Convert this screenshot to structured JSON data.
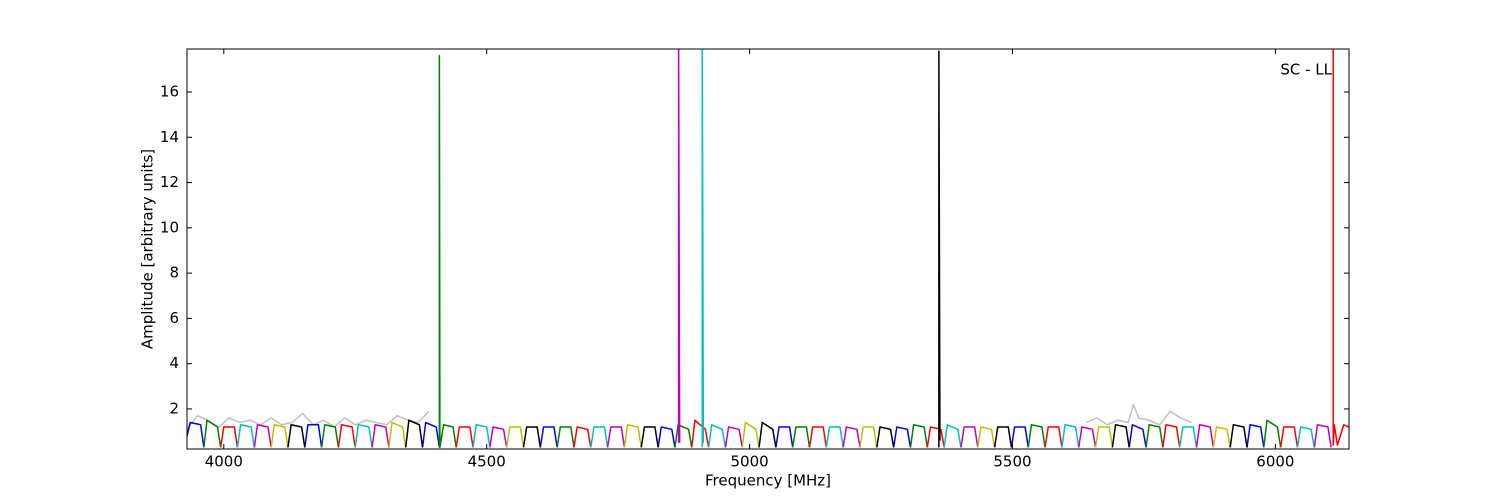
{
  "chart_data": {
    "type": "line",
    "annotation": "SC - LL",
    "xlabel": "Frequency [MHz]",
    "ylabel": "Amplitude [arbitrary units]",
    "xlim": [
      3930,
      6140
    ],
    "ylim": [
      0.23,
      17.9
    ],
    "xticks": [
      4000,
      4500,
      5000,
      5500,
      6000
    ],
    "yticks": [
      2,
      4,
      6,
      8,
      10,
      12,
      14,
      16
    ],
    "grid": false,
    "series": [
      {
        "color": "#c0c0c0",
        "x": [
          3930,
          3950,
          3970,
          3990,
          4010,
          4030,
          4050,
          4070,
          4090,
          4110,
          4130,
          4150,
          4170,
          4190,
          4210,
          4230,
          4250,
          4270,
          4290,
          4310,
          4330,
          4350,
          4370,
          4390,
          null,
          5640,
          5660,
          5680,
          5700,
          5720,
          5730,
          5740,
          5760,
          5780,
          5800,
          5820,
          5840
        ],
        "values": [
          1.1,
          1.7,
          1.5,
          1.2,
          1.6,
          1.4,
          1.5,
          1.3,
          1.6,
          1.3,
          1.4,
          1.8,
          1.3,
          1.5,
          1.2,
          1.6,
          1.3,
          1.5,
          1.4,
          1.3,
          1.7,
          1.5,
          1.4,
          1.9,
          null,
          1.4,
          1.6,
          1.3,
          1.5,
          1.4,
          2.2,
          1.6,
          1.5,
          1.3,
          1.9,
          1.6,
          1.4
        ]
      },
      {
        "color": "#0000ff",
        "x": [
          3930,
          3936,
          3956,
          3962,
          null,
          4154,
          4160,
          4180,
          4186,
          null,
          4378,
          4384,
          4404,
          4410,
          null,
          4602,
          4608,
          4628,
          4634,
          null,
          4826,
          4832,
          4852,
          4858,
          null,
          5050,
          5056,
          5076,
          5082,
          null,
          5274,
          5280,
          5300,
          5306,
          null,
          5498,
          5504,
          5524,
          5530,
          null,
          5722,
          5728,
          5748,
          5754,
          null,
          5946,
          5952,
          5972,
          5978
        ],
        "values": [
          0.8,
          1.4,
          1.3,
          0.3,
          null,
          0.3,
          1.3,
          1.3,
          0.3,
          null,
          0.3,
          1.4,
          1.2,
          0.3,
          null,
          0.3,
          1.2,
          1.2,
          0.3,
          null,
          0.3,
          1.2,
          1.1,
          0.3,
          null,
          0.3,
          1.2,
          1.2,
          0.3,
          null,
          0.3,
          1.2,
          1.1,
          0.3,
          null,
          0.3,
          1.2,
          1.2,
          0.3,
          null,
          0.3,
          1.3,
          1.1,
          0.3,
          null,
          0.3,
          1.3,
          1.2,
          0.3
        ]
      },
      {
        "color": "#008000",
        "x": [
          3962,
          3968,
          3988,
          3994,
          null,
          4186,
          4192,
          4212,
          4218,
          null,
          4410,
          4410,
          4411,
          4418,
          4436,
          4442,
          null,
          4634,
          4640,
          4660,
          4666,
          null,
          4858,
          4864,
          4884,
          4890,
          null,
          5082,
          5088,
          5108,
          5114,
          null,
          5306,
          5312,
          5332,
          5338,
          null,
          5530,
          5536,
          5556,
          5562,
          null,
          5754,
          5760,
          5780,
          5786,
          null,
          5978,
          5984,
          6004,
          6010
        ],
        "values": [
          0.3,
          1.5,
          1.2,
          0.3,
          null,
          0.3,
          1.3,
          1.2,
          0.3,
          null,
          0.3,
          17.6,
          0.3,
          1.3,
          1.2,
          0.3,
          null,
          0.3,
          1.2,
          1.2,
          0.3,
          null,
          0.3,
          1.3,
          1.1,
          0.3,
          null,
          0.3,
          1.2,
          1.2,
          0.3,
          null,
          0.3,
          1.3,
          1.2,
          0.3,
          null,
          0.3,
          1.3,
          1.2,
          0.3,
          null,
          0.3,
          1.3,
          1.2,
          0.3,
          null,
          0.3,
          1.5,
          1.2,
          0.3
        ]
      },
      {
        "color": "#ff0000",
        "x": [
          3994,
          4000,
          4020,
          4026,
          null,
          4218,
          4224,
          4244,
          4250,
          null,
          4442,
          4448,
          4468,
          4474,
          null,
          4666,
          4672,
          4692,
          4698,
          null,
          4890,
          4896,
          4916,
          4922,
          null,
          5114,
          5120,
          5140,
          5146,
          null,
          5338,
          5344,
          5364,
          5370,
          null,
          5562,
          5568,
          5588,
          5594,
          null,
          5786,
          5792,
          5812,
          5818,
          null,
          6010,
          6016,
          6036,
          6042,
          null,
          6110,
          6110,
          6112,
          6118,
          6130,
          6140
        ],
        "values": [
          0.3,
          1.2,
          1.2,
          0.3,
          null,
          0.3,
          1.3,
          1.2,
          0.3,
          null,
          0.3,
          1.2,
          1.2,
          0.3,
          null,
          0.3,
          1.2,
          1.1,
          0.3,
          null,
          0.3,
          1.5,
          1.1,
          0.3,
          null,
          0.3,
          1.2,
          1.2,
          0.3,
          null,
          0.3,
          1.2,
          1.1,
          0.3,
          null,
          0.3,
          1.2,
          1.2,
          0.3,
          null,
          0.3,
          1.3,
          1.2,
          0.3,
          null,
          0.3,
          1.2,
          1.2,
          0.3,
          null,
          17.9,
          0.4,
          1.3,
          0.4,
          1.3,
          1.2
        ]
      },
      {
        "color": "#00bfbf",
        "x": [
          4026,
          4032,
          4052,
          4058,
          null,
          4250,
          4256,
          4276,
          4282,
          null,
          4474,
          4480,
          4500,
          4506,
          null,
          4698,
          4704,
          4724,
          4730,
          null,
          4910,
          4910,
          4912,
          null,
          4922,
          4928,
          4948,
          4954,
          null,
          5146,
          5152,
          5172,
          5178,
          null,
          5370,
          5376,
          5396,
          5402,
          null,
          5594,
          5600,
          5620,
          5626,
          null,
          5818,
          5824,
          5844,
          5850,
          null,
          6042,
          6048,
          6068,
          6074
        ],
        "values": [
          0.3,
          1.3,
          1.2,
          0.3,
          null,
          0.3,
          1.3,
          1.2,
          0.3,
          null,
          0.3,
          1.3,
          1.2,
          0.3,
          null,
          0.3,
          1.2,
          1.2,
          0.3,
          null,
          0.3,
          17.9,
          0.5,
          null,
          0.3,
          1.3,
          1.1,
          0.3,
          null,
          0.3,
          1.2,
          1.2,
          0.3,
          null,
          0.3,
          1.3,
          1.1,
          0.3,
          null,
          0.3,
          1.3,
          1.2,
          0.3,
          null,
          0.3,
          1.2,
          1.2,
          0.3,
          null,
          0.3,
          1.2,
          1.1,
          0.3
        ]
      },
      {
        "color": "#bf00bf",
        "x": [
          4058,
          4064,
          4084,
          4090,
          null,
          4282,
          4288,
          4308,
          4314,
          null,
          4506,
          4512,
          4532,
          4538,
          null,
          4730,
          4736,
          4756,
          4762,
          null,
          4865,
          4865,
          4867,
          null,
          4954,
          4960,
          4980,
          4986,
          null,
          5178,
          5184,
          5204,
          5210,
          null,
          5402,
          5408,
          5428,
          5434,
          null,
          5626,
          5632,
          5652,
          5658,
          null,
          5850,
          5856,
          5876,
          5882,
          null,
          6074,
          6080,
          6100,
          6106
        ],
        "values": [
          0.3,
          1.3,
          1.2,
          0.3,
          null,
          0.3,
          1.3,
          1.2,
          0.3,
          null,
          0.3,
          1.2,
          1.1,
          0.3,
          null,
          0.3,
          1.2,
          1.2,
          0.3,
          null,
          0.5,
          17.9,
          0.5,
          null,
          0.3,
          1.2,
          1.1,
          0.3,
          null,
          0.3,
          1.2,
          1.1,
          0.3,
          null,
          0.3,
          1.2,
          1.2,
          0.3,
          null,
          0.3,
          1.2,
          1.1,
          0.3,
          null,
          0.3,
          1.3,
          1.2,
          0.3,
          null,
          0.3,
          1.3,
          1.2,
          0.3
        ]
      },
      {
        "color": "#bfbf00",
        "x": [
          4090,
          4096,
          4116,
          4122,
          null,
          4314,
          4320,
          4340,
          4346,
          null,
          4538,
          4544,
          4564,
          4570,
          null,
          4762,
          4768,
          4788,
          4794,
          null,
          4986,
          4992,
          5012,
          5018,
          null,
          5210,
          5216,
          5236,
          5242,
          null,
          5434,
          5440,
          5460,
          5466,
          null,
          5658,
          5664,
          5684,
          5690,
          null,
          5882,
          5888,
          5908,
          5914
        ],
        "values": [
          0.3,
          1.3,
          1.2,
          0.3,
          null,
          0.3,
          1.4,
          1.2,
          0.3,
          null,
          0.3,
          1.2,
          1.2,
          0.3,
          null,
          0.3,
          1.3,
          1.2,
          0.3,
          null,
          0.3,
          1.4,
          1.1,
          0.3,
          null,
          0.3,
          1.2,
          1.2,
          0.3,
          null,
          0.3,
          1.2,
          1.1,
          0.3,
          null,
          0.3,
          1.2,
          1.2,
          0.3,
          null,
          0.3,
          1.2,
          1.1,
          0.3
        ]
      },
      {
        "color": "#000000",
        "x": [
          4122,
          4128,
          4148,
          4154,
          null,
          4346,
          4352,
          4372,
          4378,
          null,
          4570,
          4576,
          4596,
          4602,
          null,
          4794,
          4800,
          4820,
          4826,
          null,
          5018,
          5024,
          5044,
          5050,
          null,
          5242,
          5248,
          5268,
          5274,
          null,
          5360,
          5360,
          5362,
          null,
          5466,
          5472,
          5492,
          5498,
          null,
          5690,
          5696,
          5716,
          5722,
          null,
          5914,
          5920,
          5940,
          5946
        ],
        "values": [
          0.3,
          1.3,
          1.2,
          0.3,
          null,
          0.3,
          1.5,
          1.3,
          0.3,
          null,
          0.3,
          1.2,
          1.2,
          0.3,
          null,
          0.3,
          1.2,
          1.2,
          0.3,
          null,
          0.3,
          1.4,
          1.1,
          0.3,
          null,
          0.3,
          1.2,
          1.1,
          0.3,
          null,
          0.3,
          17.8,
          0.6,
          null,
          0.3,
          1.2,
          1.2,
          0.3,
          null,
          0.3,
          1.3,
          1.2,
          0.3,
          null,
          0.3,
          1.3,
          1.2,
          0.3
        ]
      }
    ]
  }
}
